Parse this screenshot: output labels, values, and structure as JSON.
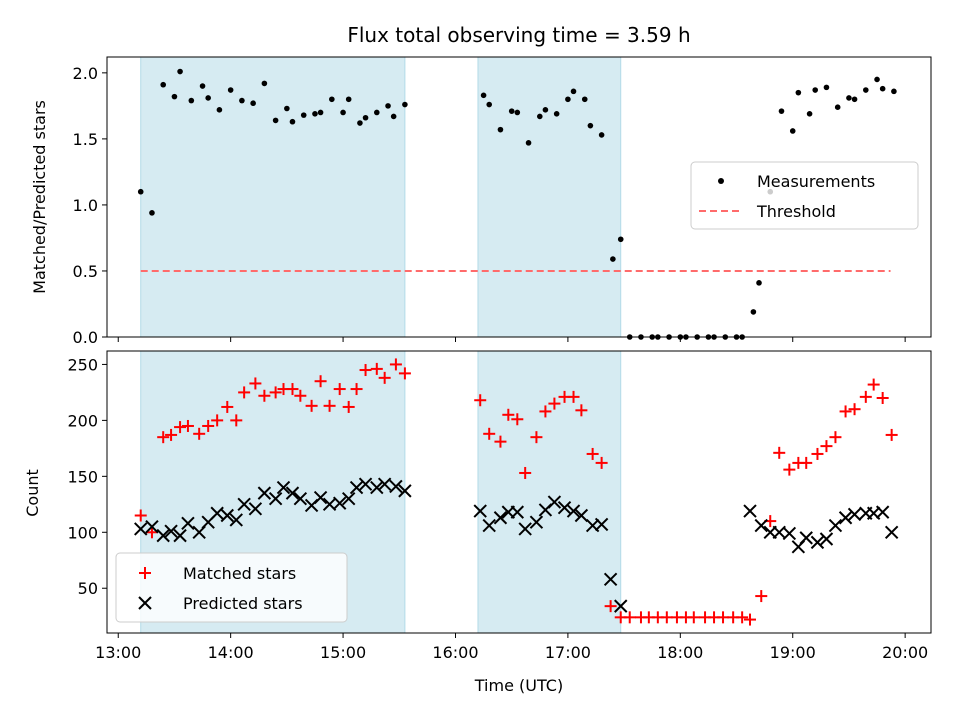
{
  "chart_data": [
    {
      "type": "scatter",
      "title": "Flux total observing time = 3.59 h",
      "ylabel": "Matched/Predicted stars",
      "xlabel": "",
      "x_unit": "hours (UTC)",
      "xlim": [
        12.9,
        20.23
      ],
      "ylim": [
        0,
        2.12
      ],
      "y_ticks": [
        "0.0",
        "0.5",
        "1.0",
        "1.5",
        "2.0"
      ],
      "legend_position": "center-right",
      "shaded_spans": [
        [
          13.2,
          15.55
        ],
        [
          16.2,
          17.47
        ]
      ],
      "shade_color": "#add8e6",
      "series": [
        {
          "name": "Measurements",
          "marker": "dot",
          "color": "#000000",
          "x": [
            13.2,
            13.3,
            13.4,
            13.5,
            13.55,
            13.65,
            13.75,
            13.8,
            13.9,
            14.0,
            14.1,
            14.2,
            14.3,
            14.4,
            14.5,
            14.55,
            14.65,
            14.75,
            14.8,
            14.9,
            15.0,
            15.05,
            15.15,
            15.2,
            15.3,
            15.4,
            15.45,
            15.55,
            16.25,
            16.3,
            16.4,
            16.5,
            16.55,
            16.65,
            16.75,
            16.8,
            16.9,
            17.0,
            17.05,
            17.15,
            17.2,
            17.3,
            17.4,
            17.47,
            17.55,
            17.65,
            17.75,
            17.8,
            17.9,
            18.0,
            18.05,
            18.15,
            18.25,
            18.3,
            18.4,
            18.5,
            18.55,
            18.65,
            18.7,
            18.8,
            18.9,
            19.0,
            19.05,
            19.15,
            19.2,
            19.3,
            19.4,
            19.5,
            19.55,
            19.65,
            19.75,
            19.8,
            19.9
          ],
          "y": [
            1.1,
            0.94,
            1.91,
            1.82,
            2.01,
            1.79,
            1.9,
            1.81,
            1.72,
            1.87,
            1.79,
            1.77,
            1.92,
            1.64,
            1.73,
            1.63,
            1.68,
            1.69,
            1.7,
            1.8,
            1.7,
            1.8,
            1.62,
            1.66,
            1.7,
            1.75,
            1.67,
            1.76,
            1.83,
            1.76,
            1.57,
            1.71,
            1.7,
            1.47,
            1.67,
            1.72,
            1.69,
            1.8,
            1.86,
            1.8,
            1.6,
            1.53,
            0.59,
            0.74,
            0.0,
            0.0,
            0.0,
            0.0,
            0.0,
            0.0,
            0.0,
            0.0,
            0.0,
            0.0,
            0.0,
            0.0,
            0.0,
            0.19,
            0.41,
            1.1,
            1.71,
            1.56,
            1.85,
            1.69,
            1.87,
            1.89,
            1.74,
            1.81,
            1.8,
            1.87,
            1.95,
            1.88,
            1.86
          ]
        },
        {
          "name": "Threshold",
          "style": "dashed",
          "color": "#ff6b6b",
          "x": [
            13.2,
            19.87
          ],
          "y": [
            0.5,
            0.5
          ]
        }
      ]
    },
    {
      "type": "scatter",
      "title": "",
      "ylabel": "Count",
      "xlabel": "Time (UTC)",
      "x_unit": "hours (UTC)",
      "xlim": [
        12.9,
        20.23
      ],
      "ylim": [
        10,
        262
      ],
      "y_ticks": [
        "50",
        "100",
        "150",
        "200",
        "250"
      ],
      "x_tick_values": [
        13,
        14,
        15,
        16,
        17,
        18,
        19,
        20
      ],
      "x_tick_labels": [
        "13:00",
        "14:00",
        "15:00",
        "16:00",
        "17:00",
        "18:00",
        "19:00",
        "20:00"
      ],
      "legend_position": "lower-left",
      "shaded_spans": [
        [
          13.2,
          15.55
        ],
        [
          16.2,
          17.47
        ]
      ],
      "shade_color": "#add8e6",
      "series": [
        {
          "name": "Matched stars",
          "marker": "plus",
          "color": "#ff0000",
          "x": [
            13.2,
            13.3,
            13.4,
            13.47,
            13.55,
            13.62,
            13.72,
            13.8,
            13.88,
            13.97,
            14.05,
            14.12,
            14.22,
            14.3,
            14.4,
            14.47,
            14.55,
            14.62,
            14.72,
            14.8,
            14.88,
            14.97,
            15.05,
            15.12,
            15.2,
            15.3,
            15.37,
            15.47,
            15.55,
            16.22,
            16.3,
            16.4,
            16.47,
            16.55,
            16.62,
            16.72,
            16.8,
            16.88,
            16.97,
            17.05,
            17.12,
            17.22,
            17.3,
            17.38,
            17.47,
            17.55,
            17.65,
            17.72,
            17.8,
            17.88,
            17.97,
            18.05,
            18.12,
            18.22,
            18.3,
            18.38,
            18.47,
            18.55,
            18.62,
            18.72,
            18.8,
            18.88,
            18.97,
            19.05,
            19.12,
            19.22,
            19.3,
            19.38,
            19.47,
            19.55,
            19.65,
            19.72,
            19.8,
            19.88
          ],
          "y": [
            115,
            100,
            185,
            187,
            194,
            195,
            188,
            195,
            200,
            212,
            200,
            225,
            233,
            222,
            225,
            228,
            228,
            222,
            213,
            235,
            213,
            228,
            212,
            228,
            245,
            246,
            238,
            250,
            242,
            218,
            188,
            181,
            205,
            201,
            153,
            185,
            208,
            215,
            221,
            221,
            209,
            170,
            162,
            34,
            24,
            24,
            24,
            24,
            24,
            24,
            24,
            24,
            24,
            24,
            24,
            24,
            24,
            24,
            22,
            43,
            110,
            171,
            156,
            162,
            162,
            170,
            177,
            185,
            208,
            210,
            221,
            232,
            220,
            187
          ]
        },
        {
          "name": "Predicted stars",
          "marker": "x",
          "color": "#000000",
          "x": [
            13.2,
            13.3,
            13.4,
            13.47,
            13.55,
            13.62,
            13.72,
            13.8,
            13.88,
            13.97,
            14.05,
            14.12,
            14.22,
            14.3,
            14.4,
            14.47,
            14.55,
            14.62,
            14.72,
            14.8,
            14.88,
            14.97,
            15.05,
            15.12,
            15.2,
            15.3,
            15.37,
            15.47,
            15.55,
            16.22,
            16.3,
            16.4,
            16.47,
            16.55,
            16.62,
            16.72,
            16.8,
            16.88,
            16.97,
            17.05,
            17.12,
            17.22,
            17.3,
            17.38,
            17.47,
            18.62,
            18.72,
            18.8,
            18.88,
            18.97,
            19.05,
            19.12,
            19.22,
            19.3,
            19.38,
            19.47,
            19.55,
            19.65,
            19.72,
            19.8,
            19.88
          ],
          "y": [
            103,
            105,
            97,
            101,
            97,
            108,
            100,
            109,
            117,
            115,
            111,
            125,
            121,
            135,
            130,
            140,
            135,
            130,
            124,
            131,
            125,
            126,
            130,
            140,
            143,
            140,
            143,
            141,
            137,
            119,
            106,
            113,
            118,
            118,
            103,
            109,
            120,
            127,
            122,
            119,
            115,
            106,
            107,
            58,
            34,
            119,
            106,
            100,
            100,
            99,
            87,
            95,
            91,
            94,
            106,
            113,
            116,
            117,
            117,
            118,
            100
          ]
        }
      ]
    }
  ]
}
